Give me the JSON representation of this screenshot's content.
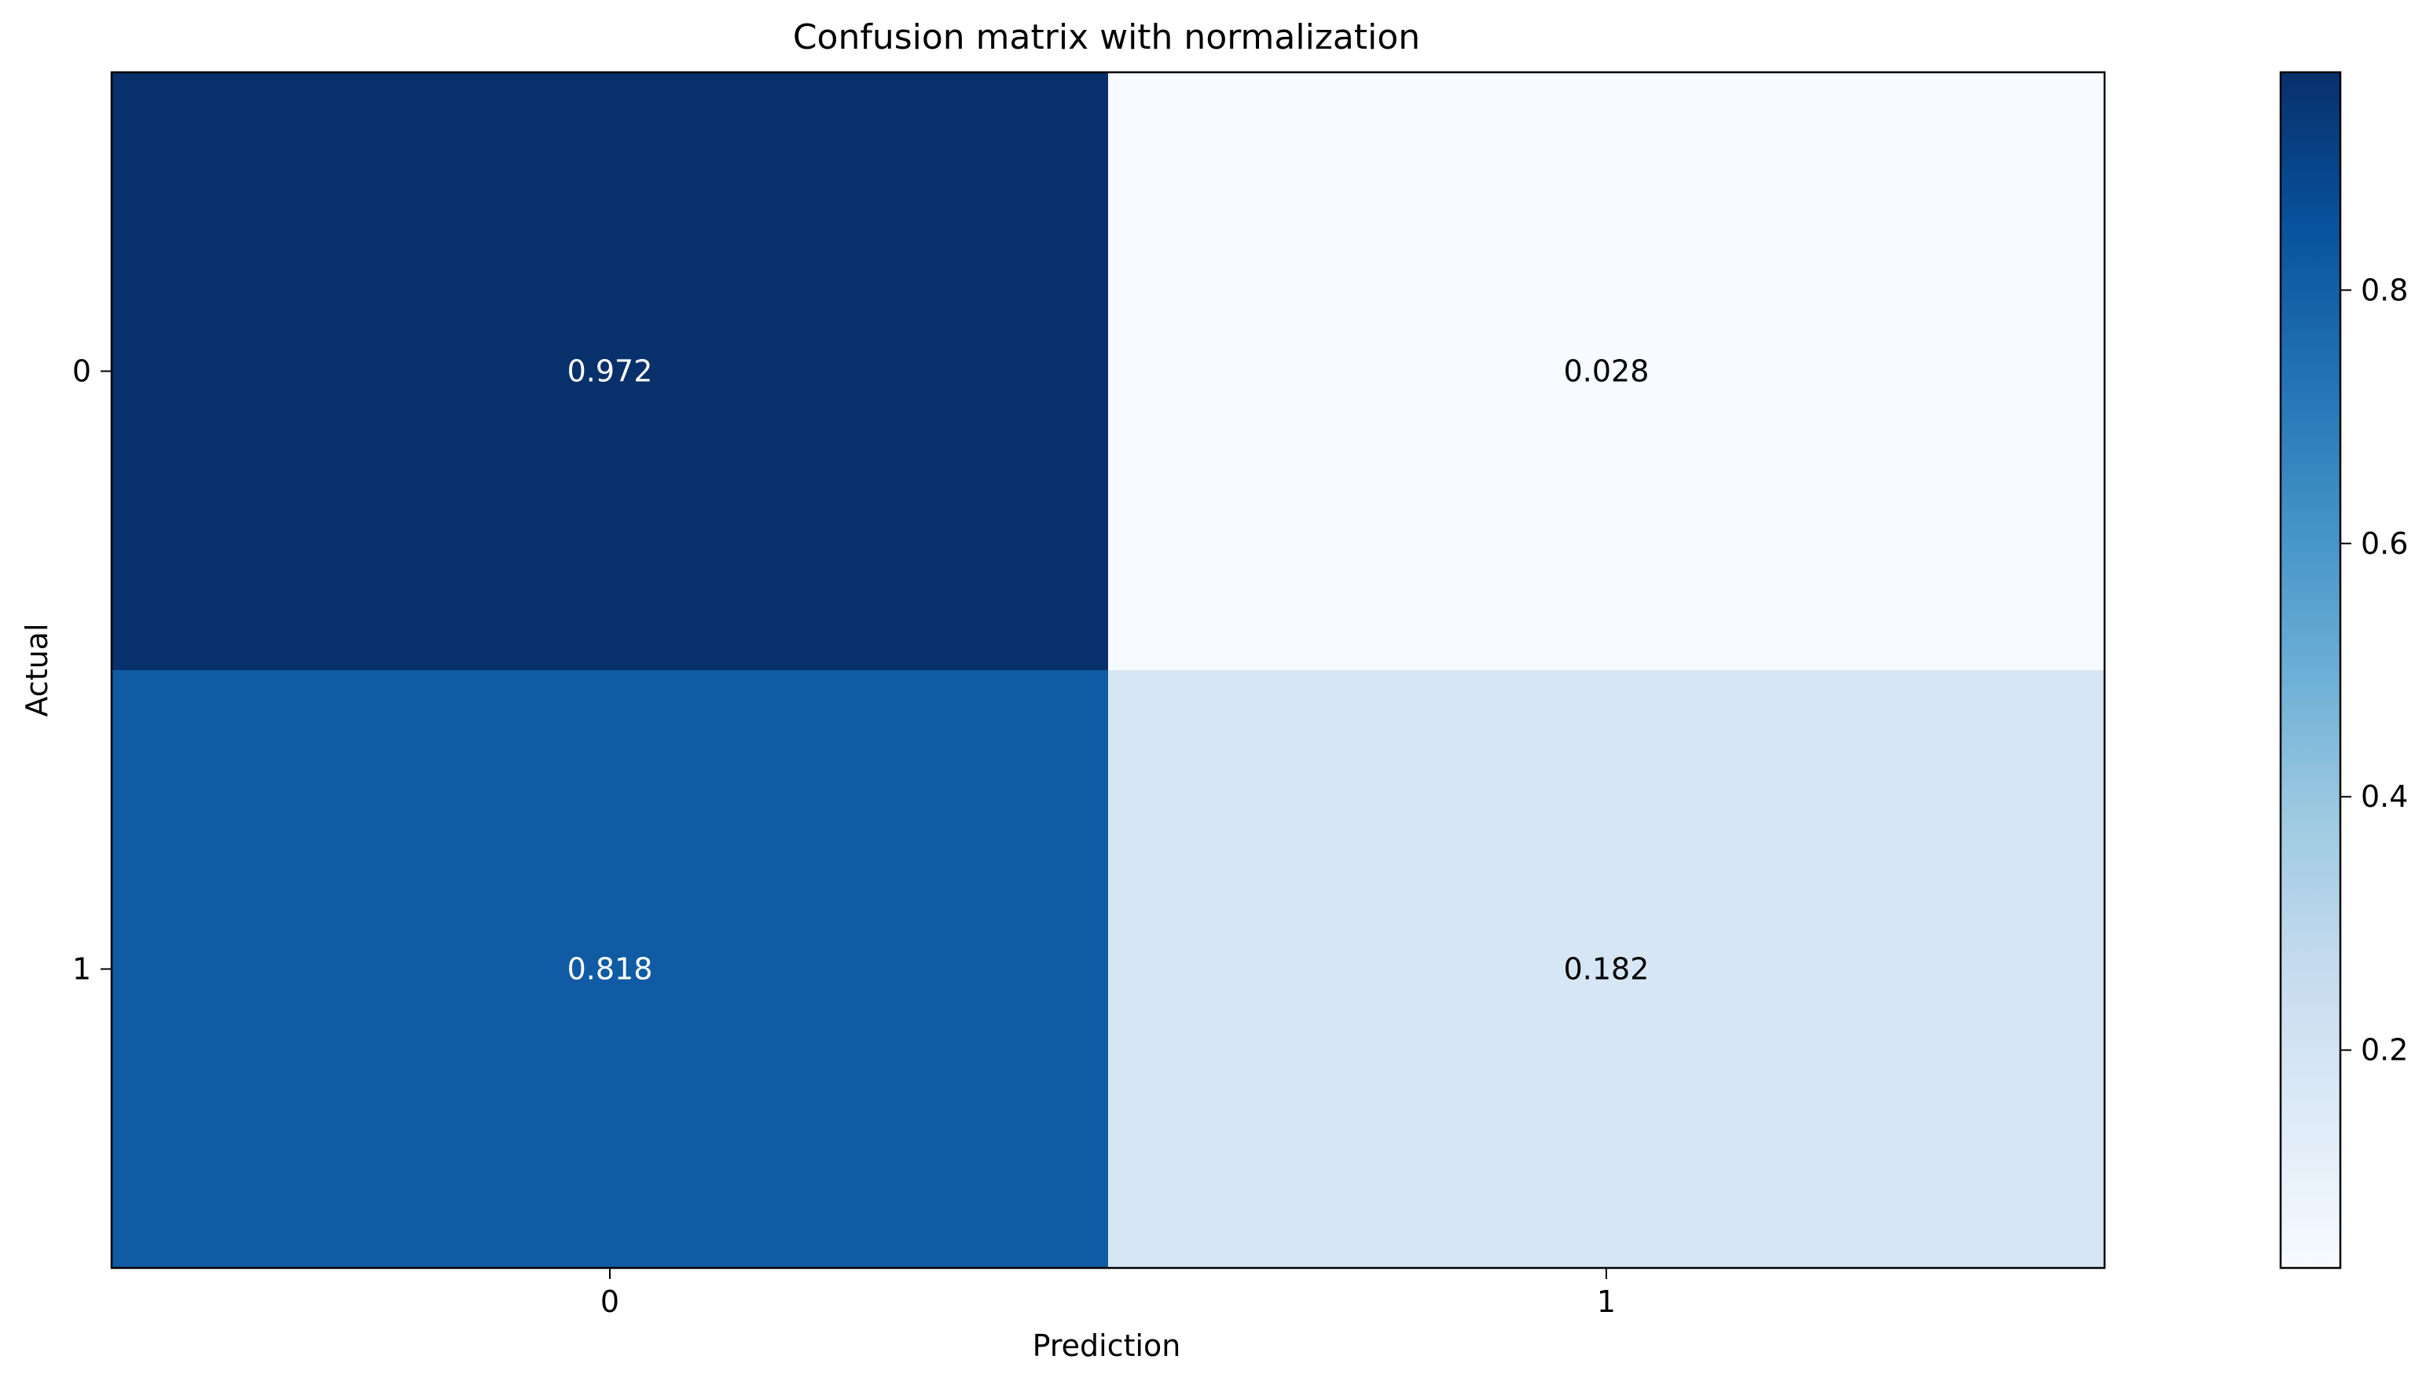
{
  "chart_data": {
    "type": "heatmap",
    "title": "Confusion matrix with normalization",
    "xlabel": "Prediction",
    "ylabel": "Actual",
    "x_categories": [
      "0",
      "1"
    ],
    "y_categories": [
      "0",
      "1"
    ],
    "cell_labels": [
      [
        "0.972",
        "0.028"
      ],
      [
        "0.818",
        "0.182"
      ]
    ],
    "values": [
      [
        0.972,
        0.028
      ],
      [
        0.818,
        0.182
      ]
    ],
    "colormap": "Blues",
    "colorbar": {
      "range": [
        0.028,
        0.972
      ],
      "ticks": [
        0.2,
        0.4,
        0.6,
        0.8
      ],
      "tick_labels": [
        "0.2",
        "0.4",
        "0.6",
        "0.8"
      ]
    },
    "grid": false
  },
  "colors": {
    "low": "#f7fbff",
    "high": "#08306b",
    "text_dark": "#000000",
    "text_light": "#ffffff"
  }
}
